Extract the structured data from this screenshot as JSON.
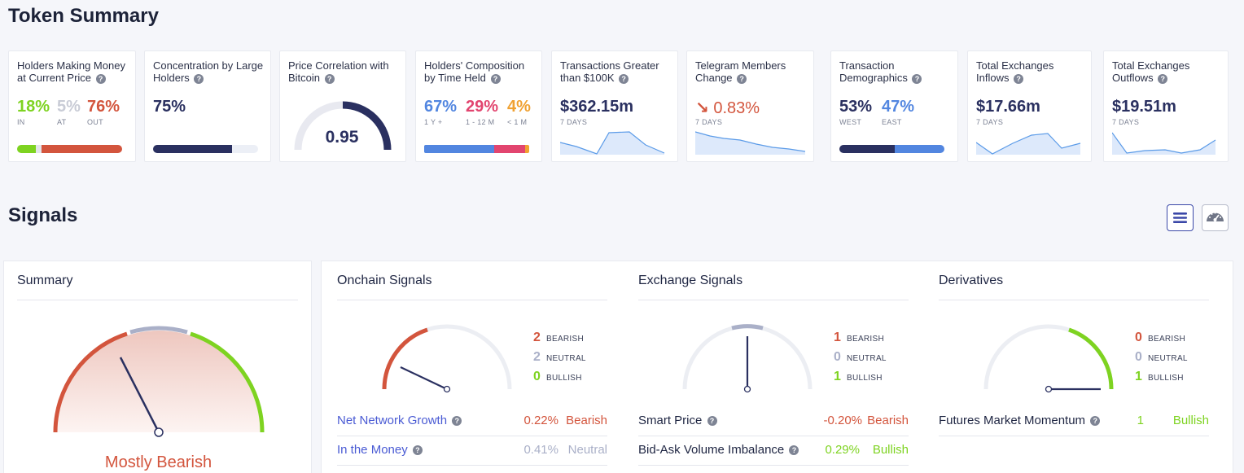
{
  "token_summary": {
    "title": "Token Summary",
    "cards": [
      {
        "title": "Holders Making Money at Current Price",
        "values": [
          {
            "v": "18%",
            "cap": "IN",
            "color": "#7ed321"
          },
          {
            "v": "5%",
            "cap": "AT",
            "color": "#c9ccd6"
          },
          {
            "v": "76%",
            "cap": "OUT",
            "color": "#d3553d"
          }
        ]
      },
      {
        "title": "Concentration by Large Holders",
        "value": "75%",
        "fill": 0.75
      },
      {
        "title": "Price Correlation with Bitcoin",
        "value": "0.95",
        "level": 0.95
      },
      {
        "title": "Holders' Composition by Time Held",
        "values": [
          {
            "v": "67%",
            "cap": "1 Y +",
            "color": "#5286e0"
          },
          {
            "v": "29%",
            "cap": "1 - 12 M",
            "color": "#e2456f"
          },
          {
            "v": "4%",
            "cap": "< 1 M",
            "color": "#f0a132"
          }
        ]
      },
      {
        "title": "Transactions Greater than $100K",
        "value": "$362.15m",
        "cap": "7 DAYS"
      },
      {
        "title": "Telegram Members Change",
        "value": "0.83%",
        "cap": "7 DAYS",
        "color": "#d3553d"
      },
      {
        "title": "Transaction Demographics",
        "values": [
          {
            "v": "53%",
            "cap": "WEST",
            "color": "#2a3060"
          },
          {
            "v": "47%",
            "cap": "EAST",
            "color": "#5286e0"
          }
        ]
      },
      {
        "title": "Total Exchanges Inflows",
        "value": "$17.66m",
        "cap": "7 DAYS"
      },
      {
        "title": "Total Exchanges Outflows",
        "value": "$19.51m",
        "cap": "7 DAYS"
      }
    ]
  },
  "signals": {
    "title": "Signals",
    "summary": {
      "title": "Summary",
      "verdict": "Mostly Bearish"
    },
    "onchain": {
      "title": "Onchain Signals",
      "counts": [
        {
          "n": "2",
          "label": "BEARISH"
        },
        {
          "n": "2",
          "label": "NEUTRAL"
        },
        {
          "n": "0",
          "label": "BULLISH"
        }
      ],
      "rows": [
        {
          "name": "Net Network Growth",
          "value": "0.22%",
          "label": "Bearish"
        },
        {
          "name": "In the Money",
          "value": "0.41%",
          "label": "Neutral"
        }
      ]
    },
    "exchange": {
      "title": "Exchange Signals",
      "counts": [
        {
          "n": "1",
          "label": "BEARISH"
        },
        {
          "n": "0",
          "label": "NEUTRAL"
        },
        {
          "n": "1",
          "label": "BULLISH"
        }
      ],
      "rows": [
        {
          "name": "Smart Price",
          "value": "-0.20%",
          "label": "Bearish"
        },
        {
          "name": "Bid-Ask Volume Imbalance",
          "value": "0.29%",
          "label": "Bullish"
        }
      ]
    },
    "derivatives": {
      "title": "Derivatives",
      "counts": [
        {
          "n": "0",
          "label": "BEARISH"
        },
        {
          "n": "0",
          "label": "NEUTRAL"
        },
        {
          "n": "1",
          "label": "BULLISH"
        }
      ],
      "rows": [
        {
          "name": "Futures Market Momentum",
          "value": "1",
          "label": "Bullish"
        }
      ]
    }
  },
  "colors": {
    "bearish": "#d3553d",
    "neutral": "#aab0c8",
    "bullish": "#7ed321",
    "navy": "#2a3060",
    "link": "#4a5bd4"
  },
  "icons": {
    "list_view": "list-icon",
    "gauge_view": "speedometer-icon",
    "help": "help-icon",
    "down_arrow": "arrow-down-right-icon"
  }
}
